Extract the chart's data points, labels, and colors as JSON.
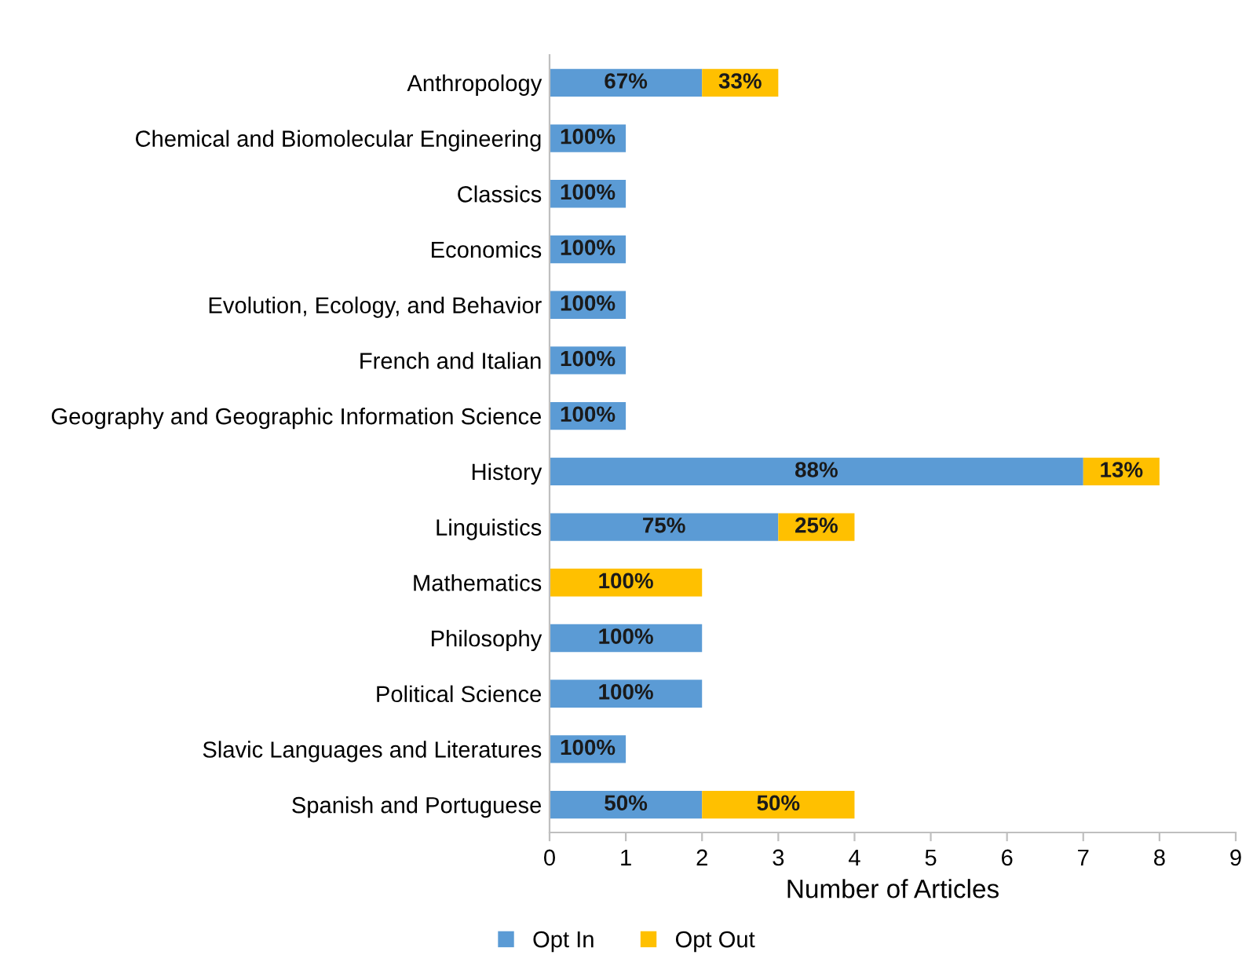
{
  "chart_data": {
    "type": "bar",
    "orientation": "horizontal",
    "stacked": true,
    "xlabel": "Number of Articles",
    "categories": [
      "Anthropology",
      "Chemical and Biomolecular Engineering",
      "Classics",
      "Economics",
      "Evolution, Ecology, and Behavior",
      "French and Italian",
      "Geography and Geographic Information Science",
      "History",
      "Linguistics",
      "Mathematics",
      "Philosophy",
      "Political Science",
      "Slavic Languages and Literatures",
      "Spanish and Portuguese"
    ],
    "series": [
      {
        "name": "Opt In",
        "color": "#5b9bd5",
        "values": [
          2,
          1,
          1,
          1,
          1,
          1,
          1,
          7,
          3,
          0,
          2,
          2,
          1,
          2
        ]
      },
      {
        "name": "Opt Out",
        "color": "#ffc000",
        "values": [
          1,
          0,
          0,
          0,
          0,
          0,
          0,
          1,
          1,
          2,
          0,
          0,
          0,
          2
        ]
      }
    ],
    "annotations": [
      "67%",
      "33%",
      "100%",
      "100%",
      "100%",
      "100%",
      "100%",
      "100%",
      "88%",
      "13%",
      "75%",
      "25%",
      "100%",
      "100%",
      "100%",
      "100%",
      "50%",
      "50%"
    ],
    "xlim": [
      0,
      9
    ],
    "xticks": [
      0,
      1,
      2,
      3,
      4,
      5,
      6,
      7,
      8,
      9
    ],
    "grid": false,
    "legend": "bottom"
  }
}
